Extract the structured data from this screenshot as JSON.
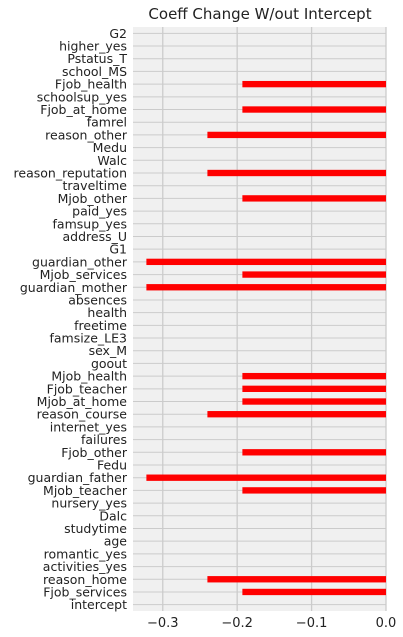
{
  "chart_data": {
    "type": "bar",
    "orientation": "horizontal",
    "title": "Coeff Change W/out Intercept",
    "xlabel": "",
    "ylabel": "",
    "xlim": [
      -0.34,
      0.0
    ],
    "xticks": [
      -0.3,
      -0.2,
      -0.1,
      0.0
    ],
    "xtick_labels": [
      "−0.3",
      "−0.2",
      "−0.1",
      "0.0"
    ],
    "grid": true,
    "legend": "none",
    "bar_color": "#ff0000",
    "background_color": "#f0f0f0",
    "grid_color": "#cbcbcb",
    "categories": [
      "G2",
      "higher_yes",
      "Pstatus_T",
      "school_MS",
      "Fjob_health",
      "schoolsup_yes",
      "Fjob_at_home",
      "famrel",
      "reason_other",
      "Medu",
      "Walc",
      "reason_reputation",
      "traveltime",
      "Mjob_other",
      "paid_yes",
      "famsup_yes",
      "address_U",
      "G1",
      "guardian_other",
      "Mjob_services",
      "guardian_mother",
      "absences",
      "health",
      "freetime",
      "famsize_LE3",
      "sex_M",
      "goout",
      "Mjob_health",
      "Fjob_teacher",
      "Mjob_at_home",
      "reason_course",
      "internet_yes",
      "failures",
      "Fjob_other",
      "Fedu",
      "guardian_father",
      "Mjob_teacher",
      "nursery_yes",
      "Dalc",
      "studytime",
      "age",
      "romantic_yes",
      "activities_yes",
      "reason_home",
      "Fjob_services",
      "intercept"
    ],
    "values": [
      0,
      0,
      0,
      0,
      -0.193,
      0,
      -0.193,
      0,
      -0.24,
      0,
      0,
      -0.24,
      0,
      -0.193,
      0,
      0,
      0,
      0,
      -0.322,
      -0.193,
      -0.322,
      0,
      0,
      0,
      0,
      0,
      0,
      -0.193,
      -0.193,
      -0.193,
      -0.24,
      0,
      0,
      -0.193,
      0,
      -0.322,
      -0.193,
      0,
      0,
      0,
      0,
      0,
      0,
      -0.24,
      -0.193,
      0
    ]
  }
}
